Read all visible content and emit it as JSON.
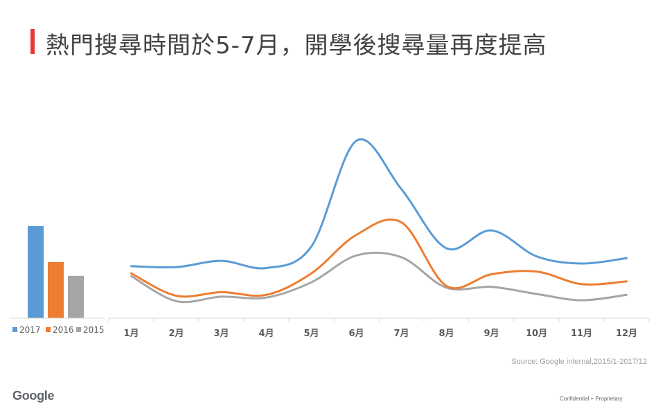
{
  "title": "熱門搜尋時間於5-7月，開學後搜尋量再度提高",
  "source": "Source: Google internal,2015/1-2017/12",
  "logo_text": "Google",
  "footer": "Confidential + Proprietary",
  "colors": {
    "accent": "#e53935",
    "series_2017": "#5b9bd5",
    "series_2016": "#ed7d31",
    "series_2015": "#a5a5a5"
  },
  "chart_data": {
    "type": "line",
    "categories": [
      "1月",
      "2月",
      "3月",
      "4月",
      "5月",
      "6月",
      "7月",
      "8月",
      "9月",
      "10月",
      "11月",
      "12月"
    ],
    "series": [
      {
        "name": "2017",
        "values": [
          58,
          57,
          64,
          56,
          80,
          198,
          144,
          78,
          98,
          69,
          61,
          67
        ]
      },
      {
        "name": "2016",
        "values": [
          50,
          25,
          29,
          26,
          50,
          93,
          107,
          36,
          49,
          52,
          38,
          41
        ]
      },
      {
        "name": "2015",
        "values": [
          47,
          19,
          24,
          23,
          40,
          70,
          68,
          34,
          35,
          27,
          20,
          26
        ]
      }
    ],
    "legend_totals": [
      {
        "name": "2017",
        "value": 100
      },
      {
        "name": "2016",
        "value": 61
      },
      {
        "name": "2015",
        "value": 46
      }
    ],
    "ylim": [
      0,
      210
    ],
    "grid": false,
    "legend_position": "bottom-left"
  }
}
